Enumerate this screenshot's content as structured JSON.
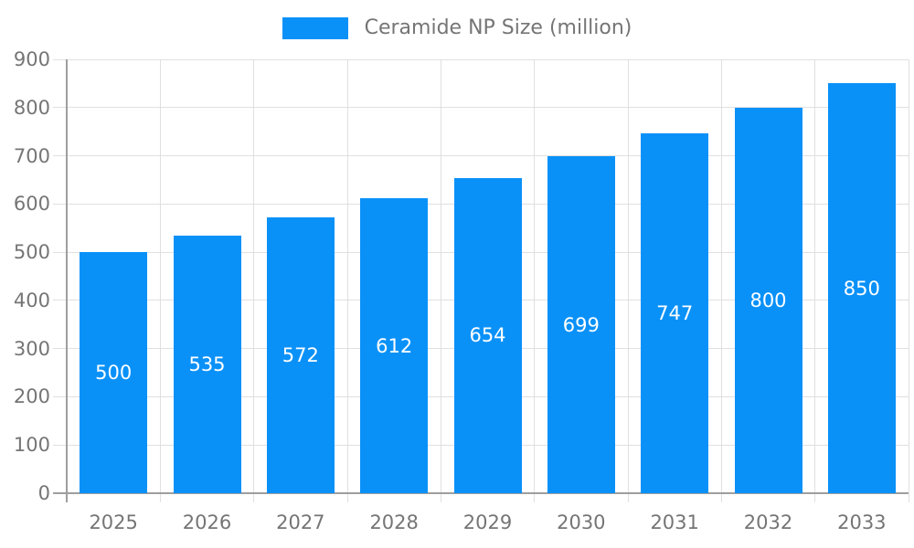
{
  "chart_data": {
    "type": "bar",
    "title": "",
    "legend": "Ceramide NP Size (million)",
    "categories": [
      "2025",
      "2026",
      "2027",
      "2028",
      "2029",
      "2030",
      "2031",
      "2032",
      "2033"
    ],
    "values": [
      500,
      535,
      572,
      612,
      654,
      699,
      747,
      800,
      850
    ],
    "xlabel": "",
    "ylabel": "",
    "ylim": [
      0,
      900
    ],
    "y_ticks": [
      0,
      100,
      200,
      300,
      400,
      500,
      600,
      700,
      800,
      900
    ],
    "grid": true,
    "legend_position": "top-center",
    "value_labels": "inside-center"
  },
  "colors": {
    "bar": "#0a91f8",
    "grid": "#e0e0e0",
    "axis": "#9e9e9e",
    "tick_text": "#757575",
    "legend_text": "#757575",
    "value_label": "#ffffff",
    "background": "#ffffff"
  }
}
